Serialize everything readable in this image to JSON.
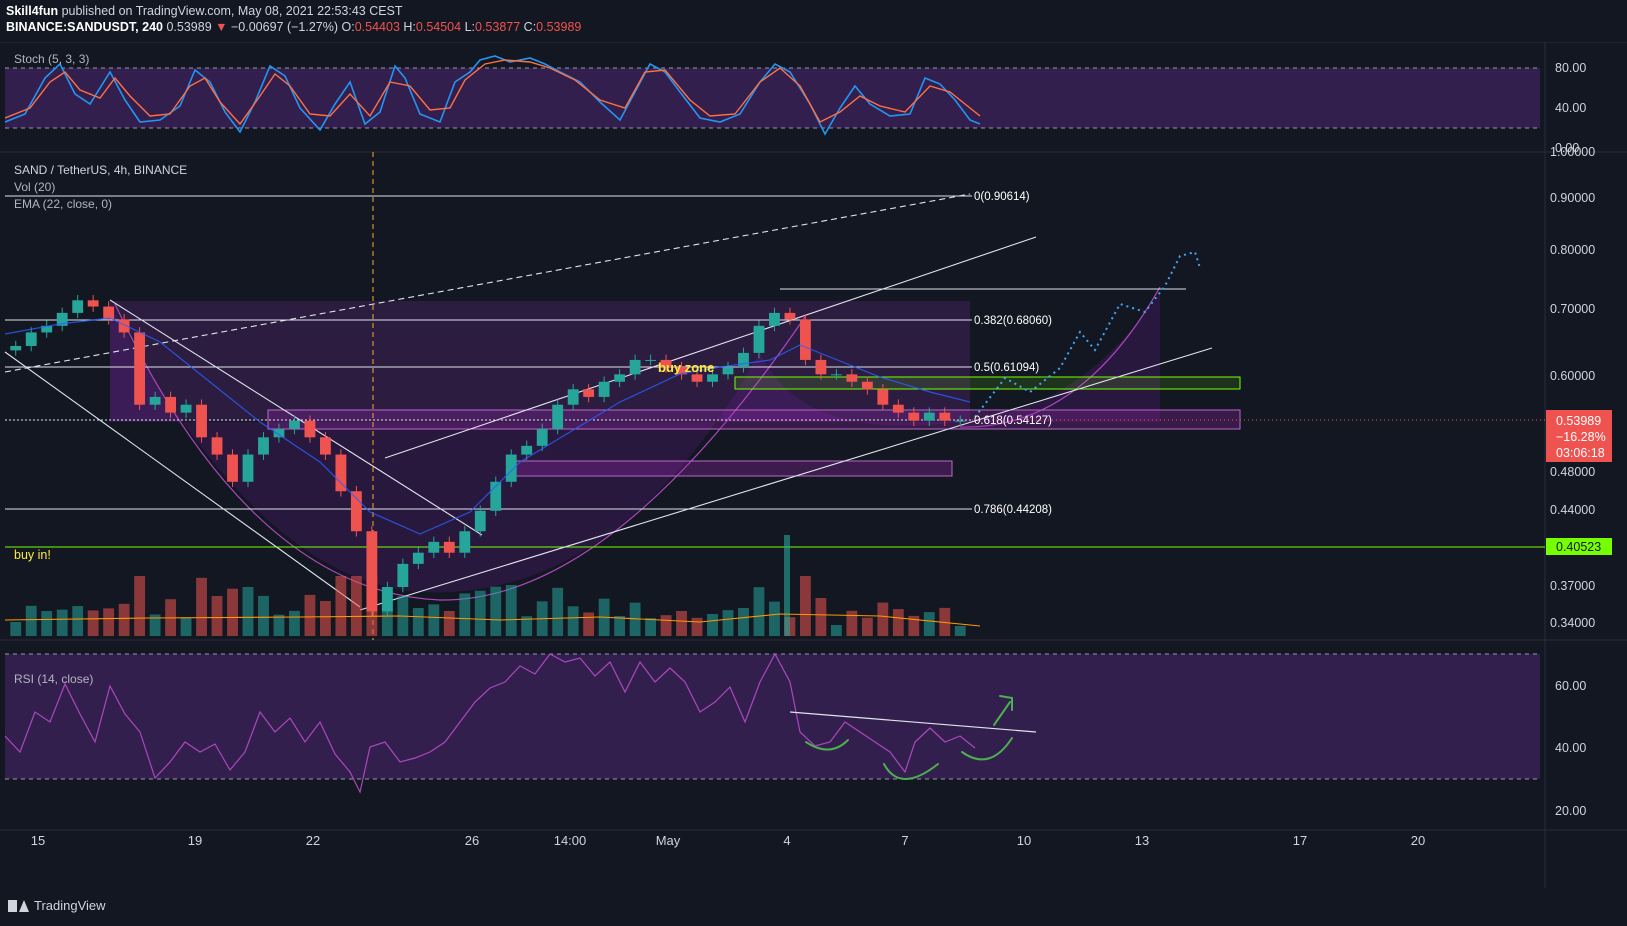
{
  "header": {
    "publisher": "Skill4fun",
    "published_text": "published on TradingView.com, May 08, 2021 22:53:43 CEST",
    "symbol": "BINANCE:SANDUSDT, 240",
    "last": "0.53989",
    "change": "−0.00697 (−1.27%)",
    "o_label": "O:",
    "o": "0.54403",
    "h_label": "H:",
    "h": "0.54504",
    "l_label": "L:",
    "l": "0.53877",
    "c_label": "C:",
    "c": "0.53989"
  },
  "indicators": {
    "stoch": "Stoch (5, 3, 3)",
    "pair": "SAND / TetherUS, 4h, BINANCE",
    "vol": "Vol (20)",
    "ema": "EMA (22, close, 0)",
    "rsi": "RSI (14, close)"
  },
  "annotations": {
    "buy_zone": "buy zone",
    "buy_in": "buy in!",
    "fib_0": "0(0.90614)",
    "fib_382": "0.382(0.68060)",
    "fib_5": "0.5(0.61094)",
    "fib_618": "0.618(0.54127)",
    "fib_786": "0.786(0.44208)"
  },
  "price_badges": {
    "last_price": "0.53989",
    "last_change": "−16.28%",
    "countdown": "03:06:18",
    "buy_in_price": "0.40523"
  },
  "footer": {
    "brand": "TradingView"
  },
  "colors": {
    "background": "#131722",
    "up": "#26a69a",
    "down": "#ef5350",
    "purple_zone": "#9c27b0",
    "green_line": "#76ff03",
    "stoch_k": "#2196f3",
    "stoch_d": "#ff7043",
    "rsi": "#9c27b0"
  },
  "chart_data": [
    {
      "type": "line",
      "name": "Stoch (5, 3, 3)",
      "yticks": [
        "80.00",
        "40.00",
        "0.00"
      ],
      "ylim": [
        0,
        100
      ],
      "bands": [
        20,
        80
      ]
    },
    {
      "type": "candlestick",
      "title": "SAND / TetherUS, 4h, BINANCE",
      "x_ticks": [
        "15",
        "19",
        "22",
        "26",
        "14:00",
        "May",
        "4",
        "7",
        "10",
        "13",
        "17",
        "20"
      ],
      "y_ticks": [
        "1.00000",
        "0.90000",
        "0.80000",
        "0.70000",
        "0.60000",
        "0.48000",
        "0.44000",
        "0.37000",
        "0.34000"
      ],
      "log_scale": true,
      "ylim": [
        0.33,
        1.0
      ],
      "fib_levels": [
        {
          "ratio": 0,
          "price": 0.90614
        },
        {
          "ratio": 0.382,
          "price": 0.6806
        },
        {
          "ratio": 0.5,
          "price": 0.61094
        },
        {
          "ratio": 0.618,
          "price": 0.54127
        },
        {
          "ratio": 0.786,
          "price": 0.44208
        }
      ],
      "last_price": 0.53989,
      "buy_in_level": 0.40523,
      "path_ohlc_approx": [
        0.64,
        0.66,
        0.67,
        0.69,
        0.71,
        0.7,
        0.68,
        0.66,
        0.56,
        0.57,
        0.55,
        0.56,
        0.52,
        0.5,
        0.47,
        0.5,
        0.52,
        0.53,
        0.54,
        0.52,
        0.5,
        0.46,
        0.42,
        0.35,
        0.37,
        0.39,
        0.4,
        0.41,
        0.4,
        0.42,
        0.44,
        0.47,
        0.5,
        0.51,
        0.53,
        0.56,
        0.58,
        0.57,
        0.59,
        0.6,
        0.62,
        0.62,
        0.61,
        0.6,
        0.59,
        0.6,
        0.61,
        0.63,
        0.67,
        0.69,
        0.68,
        0.62,
        0.6,
        0.6,
        0.59,
        0.58,
        0.56,
        0.55,
        0.54,
        0.55,
        0.54,
        0.54
      ]
    },
    {
      "type": "line",
      "name": "RSI (14, close)",
      "yticks": [
        "60.00",
        "40.00",
        "20.00"
      ],
      "ylim": [
        15,
        75
      ],
      "bands": [
        30,
        70
      ]
    }
  ]
}
